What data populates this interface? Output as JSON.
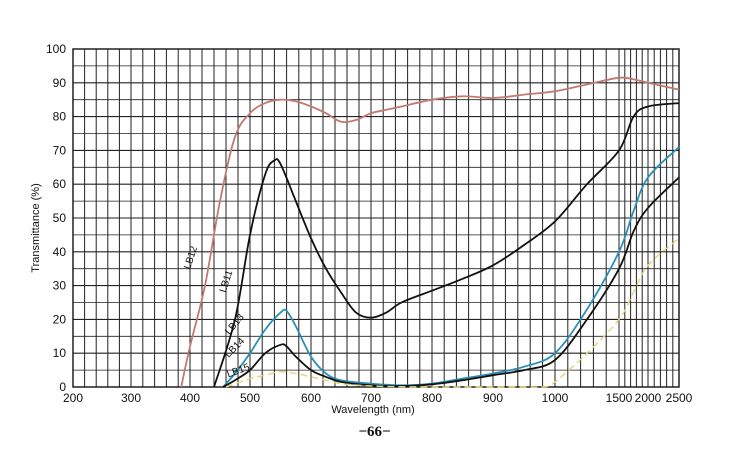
{
  "chart_data": {
    "type": "line",
    "xlabel": "Wavelength (nm)",
    "ylabel": "Transmittance (%)",
    "x_ticks": [
      "200",
      "300",
      "400",
      "500",
      "600",
      "700",
      "800",
      "900",
      "1000",
      "1500",
      "2000",
      "2500"
    ],
    "y_ticks": [
      0,
      10,
      20,
      30,
      40,
      50,
      60,
      70,
      80,
      90,
      100
    ],
    "ylim": [
      0,
      100
    ],
    "x_scale": "piecewise: 200–1000 nm linear, 1000–2500 nm compressed",
    "grid": true,
    "series": [
      {
        "name": "LB12",
        "color": "#c07a70",
        "points": [
          [
            385,
            0
          ],
          [
            400,
            12
          ],
          [
            425,
            30
          ],
          [
            450,
            55
          ],
          [
            475,
            74
          ],
          [
            500,
            81
          ],
          [
            525,
            84
          ],
          [
            550,
            85
          ],
          [
            575,
            84.5
          ],
          [
            600,
            83
          ],
          [
            625,
            81
          ],
          [
            650,
            78.5
          ],
          [
            675,
            79
          ],
          [
            700,
            81
          ],
          [
            725,
            82
          ],
          [
            750,
            83
          ],
          [
            800,
            85
          ],
          [
            850,
            86
          ],
          [
            900,
            85.5
          ],
          [
            950,
            86.5
          ],
          [
            1000,
            87.5
          ],
          [
            1250,
            89.5
          ],
          [
            1500,
            91.5
          ],
          [
            1750,
            91
          ],
          [
            2000,
            90
          ],
          [
            2500,
            88
          ]
        ]
      },
      {
        "name": "LB11",
        "color": "#111111",
        "points": [
          [
            440,
            0
          ],
          [
            475,
            20
          ],
          [
            500,
            45
          ],
          [
            525,
            63
          ],
          [
            540,
            67
          ],
          [
            550,
            66
          ],
          [
            575,
            55
          ],
          [
            600,
            44
          ],
          [
            625,
            35
          ],
          [
            650,
            28
          ],
          [
            675,
            22
          ],
          [
            700,
            20.5
          ],
          [
            725,
            22
          ],
          [
            750,
            25
          ],
          [
            800,
            28.5
          ],
          [
            850,
            32
          ],
          [
            900,
            36
          ],
          [
            950,
            42
          ],
          [
            1000,
            49
          ],
          [
            1250,
            60
          ],
          [
            1500,
            70
          ],
          [
            1750,
            80
          ],
          [
            2000,
            83
          ],
          [
            2500,
            84
          ]
        ]
      },
      {
        "name": "LB13",
        "color": "#2a8fb8",
        "points": [
          [
            455,
            0
          ],
          [
            475,
            4
          ],
          [
            500,
            10
          ],
          [
            525,
            17
          ],
          [
            550,
            22
          ],
          [
            560,
            22.5
          ],
          [
            575,
            18
          ],
          [
            600,
            9
          ],
          [
            625,
            4
          ],
          [
            650,
            2
          ],
          [
            700,
            1
          ],
          [
            750,
            0.5
          ],
          [
            800,
            1
          ],
          [
            850,
            2.5
          ],
          [
            900,
            4
          ],
          [
            950,
            6
          ],
          [
            1000,
            10
          ],
          [
            1250,
            23
          ],
          [
            1500,
            40
          ],
          [
            1750,
            52
          ],
          [
            2000,
            62
          ],
          [
            2500,
            71
          ]
        ]
      },
      {
        "name": "LB14",
        "color": "#111111",
        "points": [
          [
            455,
            0
          ],
          [
            475,
            2
          ],
          [
            500,
            5
          ],
          [
            525,
            10
          ],
          [
            550,
            12.5
          ],
          [
            560,
            12
          ],
          [
            575,
            9
          ],
          [
            600,
            5
          ],
          [
            625,
            3
          ],
          [
            650,
            1.5
          ],
          [
            700,
            0.5
          ],
          [
            750,
            0.3
          ],
          [
            800,
            0.8
          ],
          [
            850,
            2
          ],
          [
            900,
            3.5
          ],
          [
            950,
            5
          ],
          [
            1000,
            8
          ],
          [
            1250,
            20
          ],
          [
            1500,
            35
          ],
          [
            1750,
            46
          ],
          [
            2000,
            53
          ],
          [
            2500,
            62
          ]
        ]
      },
      {
        "name": "LB15",
        "color": "#e4d37a",
        "points": [
          [
            460,
            0
          ],
          [
            500,
            2.5
          ],
          [
            525,
            3.5
          ],
          [
            550,
            4.5
          ],
          [
            575,
            4
          ],
          [
            600,
            3
          ],
          [
            625,
            2
          ],
          [
            650,
            1
          ],
          [
            700,
            0.3
          ],
          [
            750,
            0.1
          ],
          [
            800,
            0
          ],
          [
            850,
            0
          ],
          [
            900,
            0
          ],
          [
            950,
            0
          ],
          [
            980,
            0
          ],
          [
            1000,
            1.5
          ],
          [
            1250,
            10
          ],
          [
            1500,
            20
          ],
          [
            1750,
            28
          ],
          [
            2000,
            36
          ],
          [
            2500,
            44
          ]
        ]
      }
    ]
  },
  "page_number": "−66−"
}
